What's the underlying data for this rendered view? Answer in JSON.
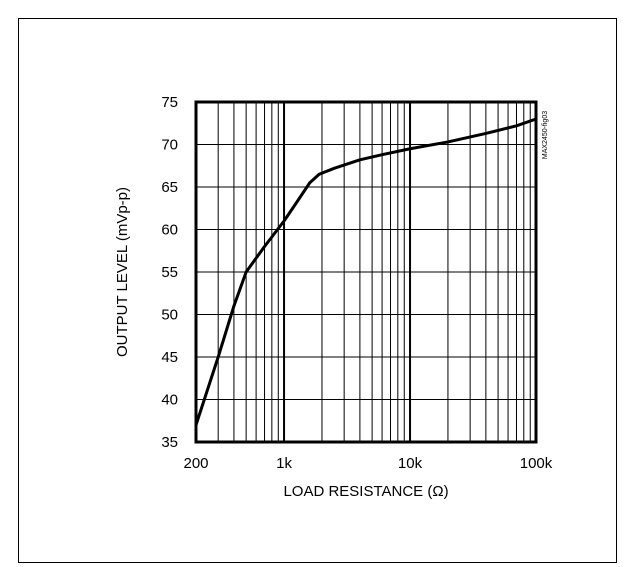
{
  "chart_data": {
    "type": "line",
    "title": "",
    "xlabel": "LOAD RESISTANCE (Ω)",
    "ylabel": "OUTPUT LEVEL (mVp-p)",
    "x_scale": "log",
    "xlim": [
      200,
      100000
    ],
    "ylim": [
      35,
      75
    ],
    "x_tick_labels": [
      "200",
      "1k",
      "10k",
      "100k"
    ],
    "x_tick_values": [
      200,
      1000,
      10000,
      100000
    ],
    "y_ticks": [
      35,
      40,
      45,
      50,
      55,
      60,
      65,
      70,
      75
    ],
    "grid": true,
    "figure_code": "MAX2450-fig03",
    "series": [
      {
        "values": [
          [
            200,
            37
          ],
          [
            300,
            45
          ],
          [
            400,
            51
          ],
          [
            500,
            55
          ],
          [
            700,
            58
          ],
          [
            1000,
            61
          ],
          [
            1300,
            63.5
          ],
          [
            1600,
            65.5
          ],
          [
            1900,
            66.5
          ],
          [
            2500,
            67.2
          ],
          [
            4000,
            68.2
          ],
          [
            6000,
            68.8
          ],
          [
            10000,
            69.5
          ],
          [
            20000,
            70.3
          ],
          [
            40000,
            71.3
          ],
          [
            70000,
            72.2
          ],
          [
            100000,
            73
          ]
        ]
      }
    ]
  }
}
